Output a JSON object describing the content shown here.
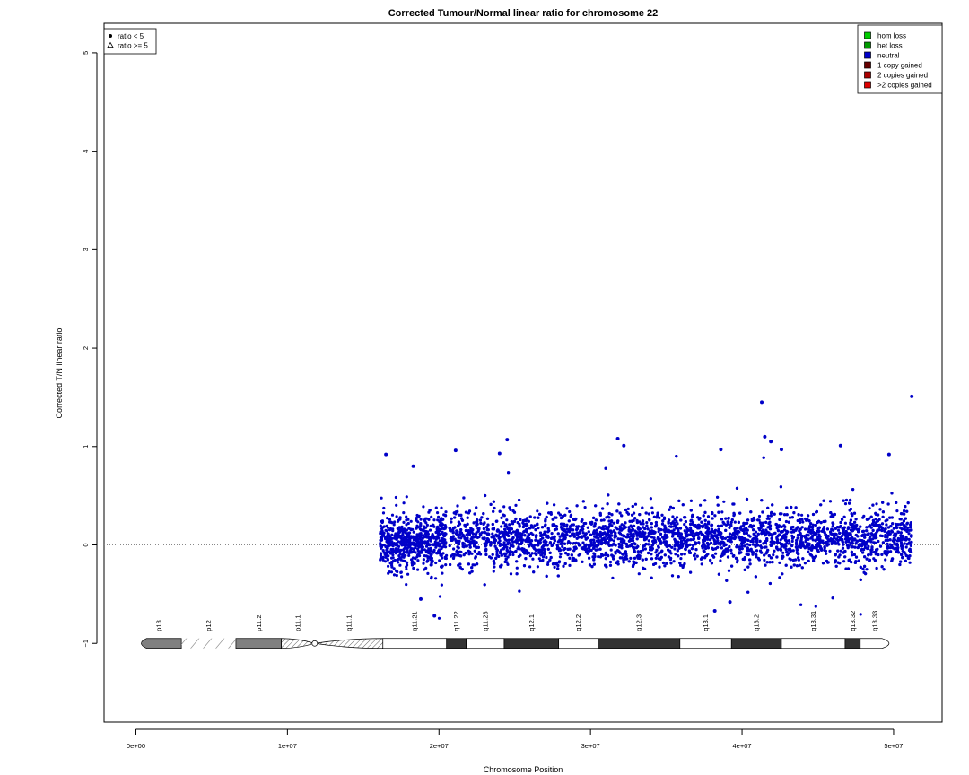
{
  "chart_data": {
    "type": "scatter",
    "title": "Corrected Tumour/Normal linear ratio for chromosome  22",
    "xlabel": "Chromosome Position",
    "ylabel": "Corrected T/N linear ratio",
    "xlim": [
      -2100000,
      53200000
    ],
    "ylim": [
      -1.8,
      5.3
    ],
    "x_ticks": [
      {
        "value": 0,
        "label": "0e+00"
      },
      {
        "value": 10000000,
        "label": "1e+07"
      },
      {
        "value": 20000000,
        "label": "2e+07"
      },
      {
        "value": 30000000,
        "label": "3e+07"
      },
      {
        "value": 40000000,
        "label": "4e+07"
      },
      {
        "value": 50000000,
        "label": "5e+07"
      }
    ],
    "y_ticks": [
      {
        "value": -1,
        "label": "−1"
      },
      {
        "value": 0,
        "label": "0"
      },
      {
        "value": 1,
        "label": "1"
      },
      {
        "value": 2,
        "label": "2"
      },
      {
        "value": 3,
        "label": "3"
      },
      {
        "value": 4,
        "label": "4"
      },
      {
        "value": 5,
        "label": "5"
      }
    ],
    "reference_line": {
      "y": 0,
      "style": "dotted",
      "color": "#888888"
    },
    "point_color": "#0000c8",
    "series": [
      {
        "name": "neutral",
        "data_regions": [
          {
            "x_start": 16100000,
            "x_end": 20500000,
            "center": 0.03,
            "spread": 0.25
          },
          {
            "x_start": 20700000,
            "x_end": 51200000,
            "center": 0.07,
            "spread": 0.25
          }
        ],
        "outliers": [
          {
            "x": 16500000,
            "y": 0.92
          },
          {
            "x": 18300000,
            "y": 0.8
          },
          {
            "x": 18800000,
            "y": -0.55
          },
          {
            "x": 19700000,
            "y": -0.72
          },
          {
            "x": 21100000,
            "y": 0.96
          },
          {
            "x": 24000000,
            "y": 0.93
          },
          {
            "x": 24500000,
            "y": 1.07
          },
          {
            "x": 31800000,
            "y": 1.08
          },
          {
            "x": 32200000,
            "y": 1.01
          },
          {
            "x": 38200000,
            "y": -0.67
          },
          {
            "x": 38600000,
            "y": 0.97
          },
          {
            "x": 39200000,
            "y": -0.58
          },
          {
            "x": 41300000,
            "y": 1.45
          },
          {
            "x": 41500000,
            "y": 1.1
          },
          {
            "x": 41900000,
            "y": 1.05
          },
          {
            "x": 42600000,
            "y": 0.97
          },
          {
            "x": 46500000,
            "y": 1.01
          },
          {
            "x": 49700000,
            "y": 0.92
          },
          {
            "x": 51200000,
            "y": 1.51
          }
        ]
      }
    ],
    "legend_left": {
      "placement": "top-left",
      "entries": [
        {
          "symbol": "circle",
          "label": "ratio < 5"
        },
        {
          "symbol": "triangle",
          "label": "ratio >= 5"
        }
      ]
    },
    "legend_right": {
      "placement": "top-right",
      "entries": [
        {
          "label": "hom loss",
          "color": "#00cc00"
        },
        {
          "label": "het loss",
          "color": "#009900"
        },
        {
          "label": "neutral",
          "color": "#0000c8"
        },
        {
          "label": "1 copy gained",
          "color": "#660000"
        },
        {
          "label": "2 copies gained",
          "color": "#aa0000"
        },
        {
          "label": ">2 copies gained",
          "color": "#dd0000"
        }
      ]
    },
    "ideogram": {
      "y": -1,
      "bands": [
        {
          "name": "p13",
          "start": 0,
          "end": 3000000,
          "stain": "gvar"
        },
        {
          "name": "p12",
          "start": 3000000,
          "end": 6600000,
          "stain": "stalk"
        },
        {
          "name": "p11.2",
          "start": 6600000,
          "end": 9600000,
          "stain": "gvar"
        },
        {
          "name": "p11.1",
          "start": 9600000,
          "end": 11800000,
          "stain": "acen"
        },
        {
          "name": "q11.1",
          "start": 11800000,
          "end": 16300000,
          "stain": "acen"
        },
        {
          "name": "q11.21",
          "start": 16300000,
          "end": 20500000,
          "stain": "gneg"
        },
        {
          "name": "q11.22",
          "start": 20500000,
          "end": 21800000,
          "stain": "gpos"
        },
        {
          "name": "q11.23",
          "start": 21800000,
          "end": 24300000,
          "stain": "gneg"
        },
        {
          "name": "q12.1",
          "start": 24300000,
          "end": 27900000,
          "stain": "gpos"
        },
        {
          "name": "q12.2",
          "start": 27900000,
          "end": 30500000,
          "stain": "gneg"
        },
        {
          "name": "q12.3",
          "start": 30500000,
          "end": 35900000,
          "stain": "gpos"
        },
        {
          "name": "q13.1",
          "start": 35900000,
          "end": 39300000,
          "stain": "gneg"
        },
        {
          "name": "q13.2",
          "start": 39300000,
          "end": 42600000,
          "stain": "gpos"
        },
        {
          "name": "q13.31",
          "start": 42600000,
          "end": 46800000,
          "stain": "gneg"
        },
        {
          "name": "q13.32",
          "start": 46800000,
          "end": 47800000,
          "stain": "gpos"
        },
        {
          "name": "q13.33",
          "start": 47800000,
          "end": 49700000,
          "stain": "gneg"
        }
      ]
    }
  }
}
